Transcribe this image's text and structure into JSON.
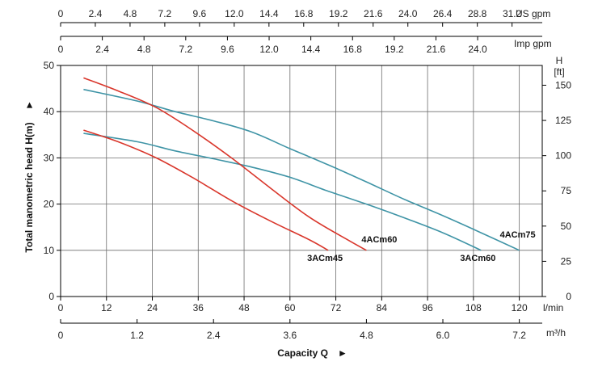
{
  "chart_data": {
    "type": "line",
    "title": "",
    "xlabel": "Capacity Q",
    "ylabel": "Total manometric head H(m)",
    "axis_arrow": "►",
    "grid": true,
    "xlim": [
      0,
      126
    ],
    "ylim": [
      0,
      50
    ],
    "axes": {
      "bottom_lmin": {
        "unit": "l/min",
        "ticks": [
          0,
          12,
          24,
          36,
          48,
          60,
          72,
          84,
          96,
          108,
          120
        ],
        "tick_labels": [
          "0",
          "12",
          "24",
          "36",
          "48",
          "60",
          "72",
          "84",
          "96",
          "108",
          "120"
        ]
      },
      "bottom_m3h": {
        "unit": "m³/h",
        "tick_labels": [
          "0",
          "1.2",
          "2.4",
          "3.6",
          "4.8",
          "6.0",
          "7.2"
        ],
        "tick_values_lmin": [
          0,
          20,
          40,
          60,
          80,
          100,
          120
        ]
      },
      "top_usgpm": {
        "unit": "US gpm",
        "tick_labels": [
          "0",
          "2.4",
          "4.8",
          "7.2",
          "9.6",
          "12.0",
          "14.4",
          "16.8",
          "19.2",
          "21.6",
          "24.0",
          "26.4",
          "28.8",
          "31.2"
        ],
        "tick_values_lmin": [
          0,
          9.08,
          18.17,
          27.25,
          36.34,
          45.42,
          54.51,
          63.59,
          72.68,
          81.76,
          90.85,
          99.93,
          109.02,
          118.1
        ]
      },
      "top_impgpm": {
        "unit": "Imp gpm",
        "tick_labels": [
          "0",
          "2.4",
          "4.8",
          "7.2",
          "9.6",
          "12.0",
          "14.4",
          "16.8",
          "19.2",
          "21.6",
          "24.0"
        ],
        "tick_values_lmin": [
          0,
          10.91,
          21.82,
          32.73,
          43.64,
          54.55,
          65.46,
          76.37,
          87.28,
          98.19,
          109.1
        ]
      },
      "left_m": {
        "ticks": [
          0,
          10,
          20,
          30,
          40,
          50
        ],
        "tick_labels": [
          "0",
          "10",
          "20",
          "30",
          "40",
          "50"
        ]
      },
      "right_ft": {
        "unit_lines": [
          "H",
          "[ft]"
        ],
        "tick_labels": [
          "0",
          "25",
          "50",
          "75",
          "100",
          "125",
          "150"
        ],
        "tick_values_m": [
          0,
          7.62,
          15.24,
          22.86,
          30.48,
          38.1,
          45.72
        ]
      }
    },
    "series": [
      {
        "name": "4ACm75",
        "color": "#3f94a6",
        "x": [
          6,
          20,
          30,
          40,
          50,
          60,
          70,
          80,
          90,
          100,
          110,
          120
        ],
        "y": [
          44.8,
          42.3,
          40.0,
          38.0,
          35.6,
          32.0,
          28.5,
          24.8,
          21.0,
          17.5,
          13.8,
          10.0
        ]
      },
      {
        "name": "3ACm60",
        "color": "#3f94a6",
        "x": [
          6,
          20,
          30,
          40,
          50,
          60,
          70,
          80,
          90,
          100,
          110
        ],
        "y": [
          35.3,
          33.5,
          31.5,
          29.8,
          28.0,
          25.8,
          22.8,
          20.0,
          17.0,
          13.8,
          10.0
        ]
      },
      {
        "name": "4ACm60",
        "color": "#d9362b",
        "x": [
          6,
          15,
          25,
          35,
          45,
          55,
          65,
          75,
          80
        ],
        "y": [
          47.3,
          44.5,
          40.9,
          35.7,
          29.8,
          23.4,
          17.2,
          12.3,
          10.0
        ]
      },
      {
        "name": "3ACm45",
        "color": "#d9362b",
        "x": [
          6,
          15,
          25,
          35,
          45,
          55,
          65,
          70
        ],
        "y": [
          36.0,
          33.5,
          30.0,
          25.5,
          20.6,
          16.3,
          12.3,
          10.0
        ]
      }
    ]
  },
  "colors": {
    "grid": "#6e6e6e",
    "axis": "#000000",
    "red": "#d9362b",
    "blue": "#3f94a6"
  }
}
